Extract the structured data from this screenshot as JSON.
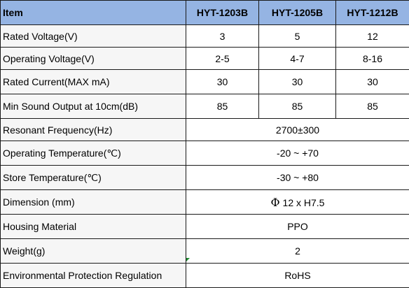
{
  "header": {
    "item": "Item",
    "models": [
      "HYT-1203B",
      "HYT-1205B",
      "HYT-1212B"
    ]
  },
  "rows": [
    {
      "label": "Rated Voltage(V)",
      "values": [
        "3",
        "5",
        "12"
      ]
    },
    {
      "label": "Operating Voltage(V)",
      "values": [
        "2-5",
        "4-7",
        "8-16"
      ]
    },
    {
      "label": "Rated Current(MAX mA)",
      "values": [
        "30",
        "30",
        "30"
      ]
    },
    {
      "label": "Min Sound Output at 10cm(dB)",
      "values": [
        "85",
        "85",
        "85"
      ]
    },
    {
      "label": "Resonant Frequency(Hz)",
      "value": "2700±300"
    },
    {
      "label": "Operating Temperature(℃)",
      "value": "-20 ~ +70"
    },
    {
      "label": "Store Temperature(℃)",
      "value": "-30 ~ +80"
    },
    {
      "label": "Dimension (mm)",
      "value_symbol": "Φ",
      "value": "12 x H7.5"
    },
    {
      "label": "Housing Material",
      "value": "PPO"
    },
    {
      "label": "Weight(g)",
      "value": "2"
    },
    {
      "label": "Environmental Protection Regulation",
      "value": "RoHS"
    }
  ],
  "colors": {
    "header_bg": "#95b4e3",
    "label_bg": "#f6f6f6",
    "border": "#1a1a1a",
    "corner_marker": "#1c8a2e"
  }
}
